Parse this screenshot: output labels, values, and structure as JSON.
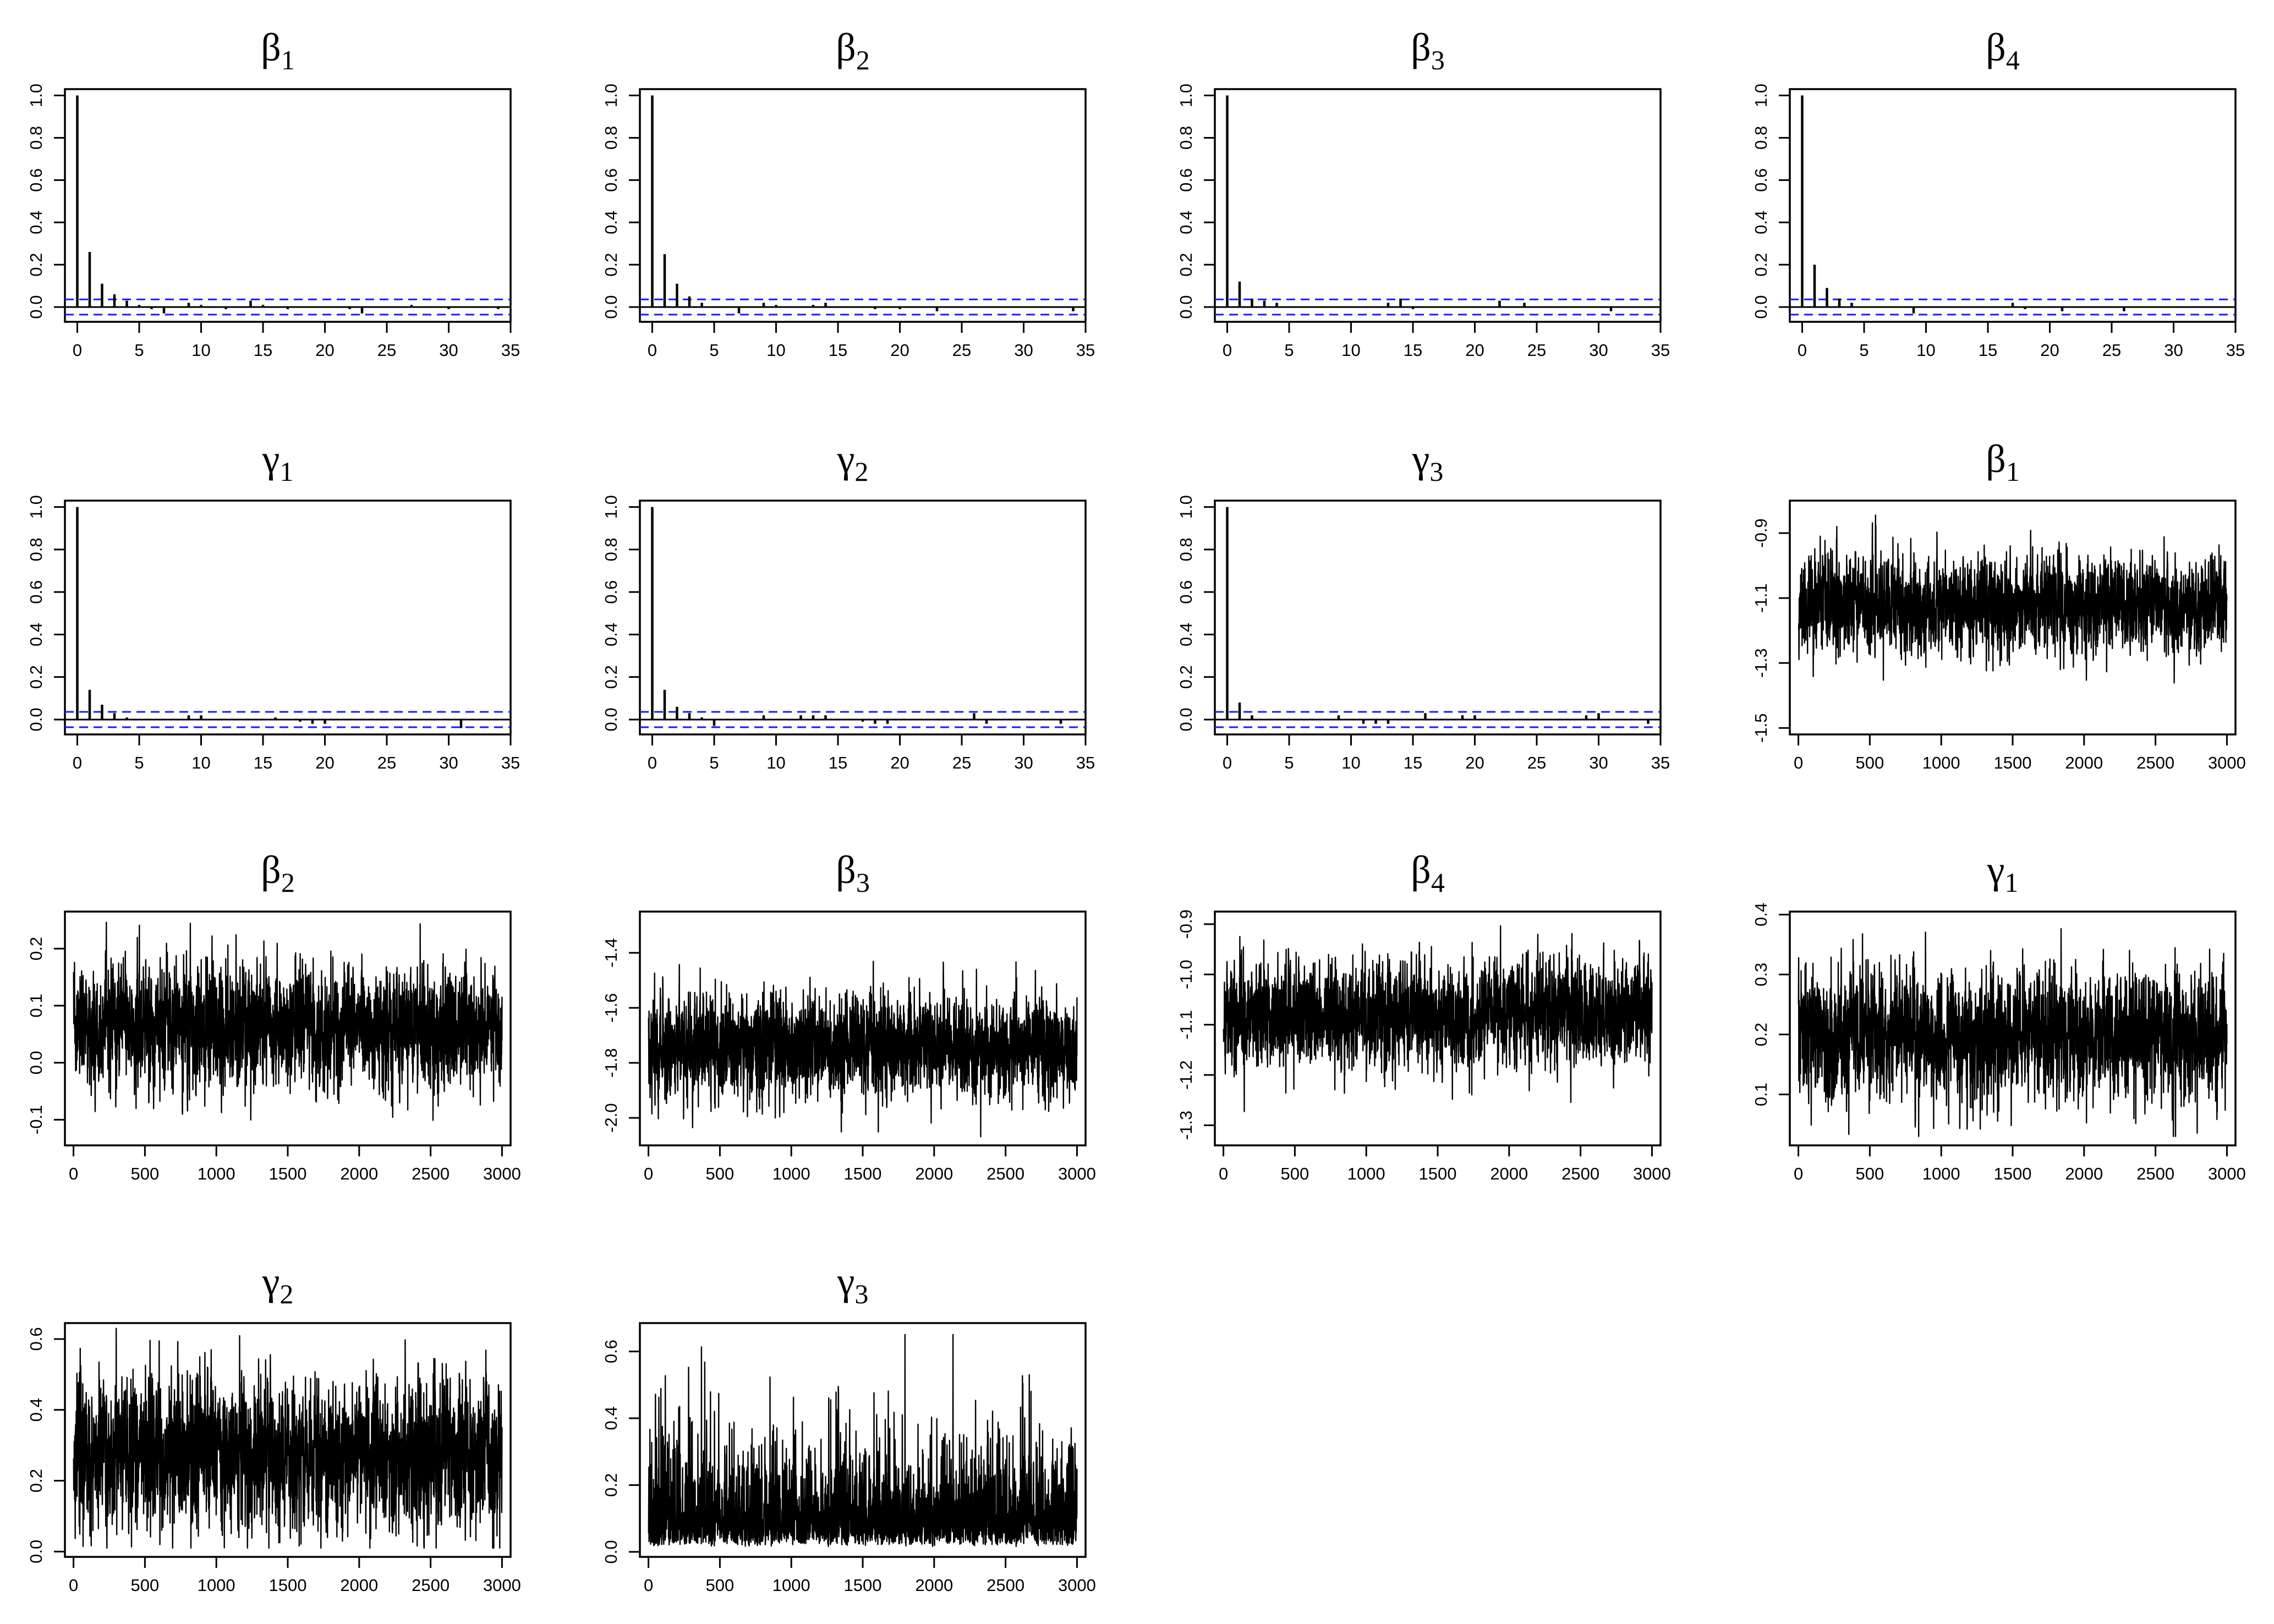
{
  "figure": {
    "panel_titles": [
      {
        "symbol": "β",
        "subscript": "1"
      },
      {
        "symbol": "β",
        "subscript": "2"
      },
      {
        "symbol": "β",
        "subscript": "3"
      },
      {
        "symbol": "β",
        "subscript": "4"
      },
      {
        "symbol": "γ",
        "subscript": "1"
      },
      {
        "symbol": "γ",
        "subscript": "2"
      },
      {
        "symbol": "γ",
        "subscript": "3"
      },
      {
        "symbol": "β",
        "subscript": "1"
      },
      {
        "symbol": "β",
        "subscript": "2"
      },
      {
        "symbol": "β",
        "subscript": "3"
      },
      {
        "symbol": "β",
        "subscript": "4"
      },
      {
        "symbol": "γ",
        "subscript": "1"
      },
      {
        "symbol": "γ",
        "subscript": "2"
      },
      {
        "symbol": "γ",
        "subscript": "3"
      }
    ]
  },
  "chart_data": [
    {
      "type": "bar",
      "kind": "acf",
      "title": "β1",
      "x_ticks": [
        "0",
        "5",
        "10",
        "15",
        "20",
        "25",
        "30",
        "35"
      ],
      "y_ticks": [
        "0.0",
        "0.2",
        "0.4",
        "0.6",
        "0.8",
        "1.0"
      ],
      "xlim": [
        -1,
        35
      ],
      "ylim": [
        -0.07,
        1.03
      ],
      "confidence_band": 0.036,
      "lags": [
        0,
        1,
        2,
        3,
        4,
        5,
        6,
        7,
        8,
        9,
        10,
        11,
        12,
        13,
        14,
        15,
        16,
        17,
        18,
        19,
        20,
        21,
        22,
        23,
        24,
        25,
        26,
        27,
        28,
        29,
        30,
        31,
        32,
        33,
        34
      ],
      "values": [
        1.0,
        0.26,
        0.11,
        0.06,
        0.03,
        0.01,
        -0.01,
        -0.03,
        0.0,
        0.02,
        0.01,
        0.0,
        -0.01,
        0.0,
        0.03,
        0.01,
        0.0,
        -0.01,
        0.0,
        0.0,
        0.0,
        0.0,
        -0.01,
        -0.03,
        0.0,
        0.0,
        0.0,
        0.01,
        0.0,
        0.0,
        -0.01,
        0.0,
        0.0,
        0.0,
        -0.01
      ]
    },
    {
      "type": "bar",
      "kind": "acf",
      "title": "β2",
      "x_ticks": [
        "0",
        "5",
        "10",
        "15",
        "20",
        "25",
        "30",
        "35"
      ],
      "y_ticks": [
        "0.0",
        "0.2",
        "0.4",
        "0.6",
        "0.8",
        "1.0"
      ],
      "xlim": [
        -1,
        35
      ],
      "ylim": [
        -0.07,
        1.03
      ],
      "confidence_band": 0.036,
      "lags": [
        0,
        1,
        2,
        3,
        4,
        5,
        6,
        7,
        8,
        9,
        10,
        11,
        12,
        13,
        14,
        15,
        16,
        17,
        18,
        19,
        20,
        21,
        22,
        23,
        24,
        25,
        26,
        27,
        28,
        29,
        30,
        31,
        32,
        33,
        34
      ],
      "values": [
        1.0,
        0.25,
        0.11,
        0.05,
        0.02,
        0.0,
        0.0,
        -0.03,
        0.0,
        0.02,
        0.01,
        0.0,
        0.0,
        0.01,
        0.02,
        0.0,
        0.0,
        0.0,
        -0.01,
        0.0,
        -0.01,
        0.0,
        0.0,
        -0.02,
        0.0,
        0.0,
        0.0,
        0.0,
        0.0,
        0.0,
        0.0,
        0.0,
        0.0,
        0.0,
        -0.02
      ]
    },
    {
      "type": "bar",
      "kind": "acf",
      "title": "β3",
      "x_ticks": [
        "0",
        "5",
        "10",
        "15",
        "20",
        "25",
        "30",
        "35"
      ],
      "y_ticks": [
        "0.0",
        "0.2",
        "0.4",
        "0.6",
        "0.8",
        "1.0"
      ],
      "xlim": [
        -1,
        35
      ],
      "ylim": [
        -0.07,
        1.03
      ],
      "confidence_band": 0.036,
      "lags": [
        0,
        1,
        2,
        3,
        4,
        5,
        6,
        7,
        8,
        9,
        10,
        11,
        12,
        13,
        14,
        15,
        16,
        17,
        18,
        19,
        20,
        21,
        22,
        23,
        24,
        25,
        26,
        27,
        28,
        29,
        30,
        31,
        32,
        33,
        34
      ],
      "values": [
        1.0,
        0.12,
        0.04,
        0.03,
        0.02,
        0.0,
        0.0,
        0.0,
        0.0,
        0.0,
        0.0,
        0.0,
        0.0,
        0.02,
        0.04,
        -0.01,
        0.0,
        0.0,
        0.0,
        0.0,
        0.0,
        0.0,
        0.03,
        0.0,
        0.02,
        0.0,
        0.0,
        0.0,
        0.0,
        0.0,
        0.0,
        -0.02,
        0.0,
        0.0,
        0.0
      ]
    },
    {
      "type": "bar",
      "kind": "acf",
      "title": "β4",
      "x_ticks": [
        "0",
        "5",
        "10",
        "15",
        "20",
        "25",
        "30",
        "35"
      ],
      "y_ticks": [
        "0.0",
        "0.2",
        "0.4",
        "0.6",
        "0.8",
        "1.0"
      ],
      "xlim": [
        -1,
        35
      ],
      "ylim": [
        -0.07,
        1.03
      ],
      "confidence_band": 0.036,
      "lags": [
        0,
        1,
        2,
        3,
        4,
        5,
        6,
        7,
        8,
        9,
        10,
        11,
        12,
        13,
        14,
        15,
        16,
        17,
        18,
        19,
        20,
        21,
        22,
        23,
        24,
        25,
        26,
        27,
        28,
        29,
        30,
        31,
        32,
        33,
        34
      ],
      "values": [
        1.0,
        0.2,
        0.09,
        0.04,
        0.02,
        0.0,
        0.0,
        0.0,
        0.0,
        -0.03,
        0.0,
        0.0,
        0.0,
        0.0,
        0.0,
        0.0,
        0.0,
        0.02,
        -0.01,
        0.0,
        0.0,
        -0.02,
        0.0,
        0.0,
        0.0,
        0.0,
        -0.02,
        0.0,
        0.0,
        0.0,
        0.0,
        0.0,
        0.0,
        0.0,
        0.0
      ]
    },
    {
      "type": "bar",
      "kind": "acf",
      "title": "γ1",
      "x_ticks": [
        "0",
        "5",
        "10",
        "15",
        "20",
        "25",
        "30",
        "35"
      ],
      "y_ticks": [
        "0.0",
        "0.2",
        "0.4",
        "0.6",
        "0.8",
        "1.0"
      ],
      "xlim": [
        -1,
        35
      ],
      "ylim": [
        -0.07,
        1.03
      ],
      "confidence_band": 0.036,
      "lags": [
        0,
        1,
        2,
        3,
        4,
        5,
        6,
        7,
        8,
        9,
        10,
        11,
        12,
        13,
        14,
        15,
        16,
        17,
        18,
        19,
        20,
        21,
        22,
        23,
        24,
        25,
        26,
        27,
        28,
        29,
        30,
        31,
        32,
        33,
        34
      ],
      "values": [
        1.0,
        0.14,
        0.07,
        0.03,
        0.01,
        0.0,
        0.0,
        0.0,
        0.0,
        0.02,
        0.02,
        0.0,
        0.0,
        0.0,
        0.0,
        0.0,
        0.01,
        0.0,
        -0.01,
        -0.02,
        -0.02,
        0.0,
        0.0,
        0.0,
        0.0,
        0.0,
        0.0,
        0.0,
        0.0,
        0.0,
        0.0,
        -0.04,
        0.0,
        0.0,
        0.0
      ]
    },
    {
      "type": "bar",
      "kind": "acf",
      "title": "γ2",
      "x_ticks": [
        "0",
        "5",
        "10",
        "15",
        "20",
        "25",
        "30",
        "35"
      ],
      "y_ticks": [
        "0.0",
        "0.2",
        "0.4",
        "0.6",
        "0.8",
        "1.0"
      ],
      "xlim": [
        -1,
        35
      ],
      "ylim": [
        -0.07,
        1.03
      ],
      "confidence_band": 0.036,
      "lags": [
        0,
        1,
        2,
        3,
        4,
        5,
        6,
        7,
        8,
        9,
        10,
        11,
        12,
        13,
        14,
        15,
        16,
        17,
        18,
        19,
        20,
        21,
        22,
        23,
        24,
        25,
        26,
        27,
        28,
        29,
        30,
        31,
        32,
        33,
        34
      ],
      "values": [
        1.0,
        0.14,
        0.06,
        0.03,
        0.01,
        -0.03,
        0.0,
        0.0,
        0.0,
        0.02,
        0.0,
        0.0,
        0.02,
        0.02,
        0.02,
        0.0,
        0.0,
        -0.01,
        -0.02,
        -0.02,
        0.0,
        0.0,
        0.0,
        0.0,
        0.0,
        0.0,
        0.03,
        -0.02,
        0.0,
        0.0,
        0.0,
        0.0,
        0.0,
        -0.02,
        0.0
      ]
    },
    {
      "type": "bar",
      "kind": "acf",
      "title": "γ3",
      "x_ticks": [
        "0",
        "5",
        "10",
        "15",
        "20",
        "25",
        "30",
        "35"
      ],
      "y_ticks": [
        "0.0",
        "0.2",
        "0.4",
        "0.6",
        "0.8",
        "1.0"
      ],
      "xlim": [
        -1,
        35
      ],
      "ylim": [
        -0.07,
        1.03
      ],
      "confidence_band": 0.036,
      "lags": [
        0,
        1,
        2,
        3,
        4,
        5,
        6,
        7,
        8,
        9,
        10,
        11,
        12,
        13,
        14,
        15,
        16,
        17,
        18,
        19,
        20,
        21,
        22,
        23,
        24,
        25,
        26,
        27,
        28,
        29,
        30,
        31,
        32,
        33,
        34
      ],
      "values": [
        1.0,
        0.08,
        0.02,
        0.0,
        0.0,
        0.0,
        0.0,
        0.0,
        0.0,
        0.02,
        0.0,
        -0.02,
        -0.02,
        -0.02,
        0.0,
        0.0,
        0.03,
        0.0,
        0.0,
        0.02,
        0.02,
        0.0,
        0.0,
        0.0,
        0.0,
        0.0,
        0.0,
        0.0,
        0.0,
        0.02,
        0.03,
        0.0,
        0.0,
        0.0,
        -0.02
      ]
    },
    {
      "type": "line",
      "kind": "trace",
      "title": "β1",
      "x_ticks": [
        "0",
        "500",
        "1000",
        "1500",
        "2000",
        "2500",
        "3000"
      ],
      "y_ticks": [
        "-1.5",
        "-1.3",
        "-1.1",
        "-0.9"
      ],
      "xlim": [
        -60,
        3060
      ],
      "ylim": [
        -1.52,
        -0.8
      ],
      "n_iter": 3000,
      "center": -1.12,
      "spread": 0.07,
      "range": [
        -1.5,
        -0.81
      ],
      "series_seed": 11
    },
    {
      "type": "line",
      "kind": "trace",
      "title": "β2",
      "x_ticks": [
        "0",
        "500",
        "1000",
        "1500",
        "2000",
        "2500",
        "3000"
      ],
      "y_ticks": [
        "-0.1",
        "0.0",
        "0.1",
        "0.2"
      ],
      "xlim": [
        -60,
        3060
      ],
      "ylim": [
        -0.145,
        0.265
      ],
      "n_iter": 3000,
      "center": 0.06,
      "spread": 0.05,
      "range": [
        -0.14,
        0.25
      ],
      "series_seed": 23
    },
    {
      "type": "line",
      "kind": "trace",
      "title": "β3",
      "x_ticks": [
        "0",
        "500",
        "1000",
        "1500",
        "2000",
        "2500",
        "3000"
      ],
      "y_ticks": [
        "-2.0",
        "-1.8",
        "-1.6",
        "-1.4"
      ],
      "xlim": [
        -60,
        3060
      ],
      "ylim": [
        -2.1,
        -1.25
      ],
      "n_iter": 3000,
      "center": -1.74,
      "spread": 0.09,
      "range": [
        -2.08,
        -1.27
      ],
      "series_seed": 37
    },
    {
      "type": "line",
      "kind": "trace",
      "title": "β4",
      "x_ticks": [
        "0",
        "500",
        "1000",
        "1500",
        "2000",
        "2500",
        "3000"
      ],
      "y_ticks": [
        "-1.3",
        "-1.2",
        "-1.1",
        "-1.0",
        "-0.9"
      ],
      "xlim": [
        -60,
        3060
      ],
      "ylim": [
        -1.34,
        -0.875
      ],
      "n_iter": 3000,
      "center": -1.08,
      "spread": 0.05,
      "range": [
        -1.33,
        -0.88
      ],
      "series_seed": 41
    },
    {
      "type": "line",
      "kind": "trace",
      "title": "γ1",
      "x_ticks": [
        "0",
        "500",
        "1000",
        "1500",
        "2000",
        "2500",
        "3000"
      ],
      "y_ticks": [
        "0.1",
        "0.2",
        "0.3",
        "0.4"
      ],
      "xlim": [
        -60,
        3060
      ],
      "ylim": [
        0.015,
        0.405
      ],
      "n_iter": 3000,
      "center": 0.2,
      "spread": 0.05,
      "range": [
        0.03,
        0.39
      ],
      "series_seed": 53
    },
    {
      "type": "line",
      "kind": "trace",
      "title": "γ2",
      "x_ticks": [
        "0",
        "500",
        "1000",
        "1500",
        "2000",
        "2500",
        "3000"
      ],
      "y_ticks": [
        "0.0",
        "0.2",
        "0.4",
        "0.6"
      ],
      "xlim": [
        -60,
        3060
      ],
      "ylim": [
        -0.015,
        0.645
      ],
      "n_iter": 3000,
      "center": 0.28,
      "spread": 0.1,
      "range": [
        0.01,
        0.63
      ],
      "series_seed": 67
    },
    {
      "type": "line",
      "kind": "trace",
      "title": "γ3",
      "x_ticks": [
        "0",
        "500",
        "1000",
        "1500",
        "2000",
        "2500",
        "3000"
      ],
      "y_ticks": [
        "0.0",
        "0.2",
        "0.4",
        "0.6"
      ],
      "xlim": [
        -60,
        3060
      ],
      "ylim": [
        -0.015,
        0.685
      ],
      "n_iter": 3000,
      "center": 0.16,
      "spread": 0.1,
      "range": [
        0.005,
        0.67
      ],
      "series_seed": 79,
      "skew": "right"
    }
  ]
}
